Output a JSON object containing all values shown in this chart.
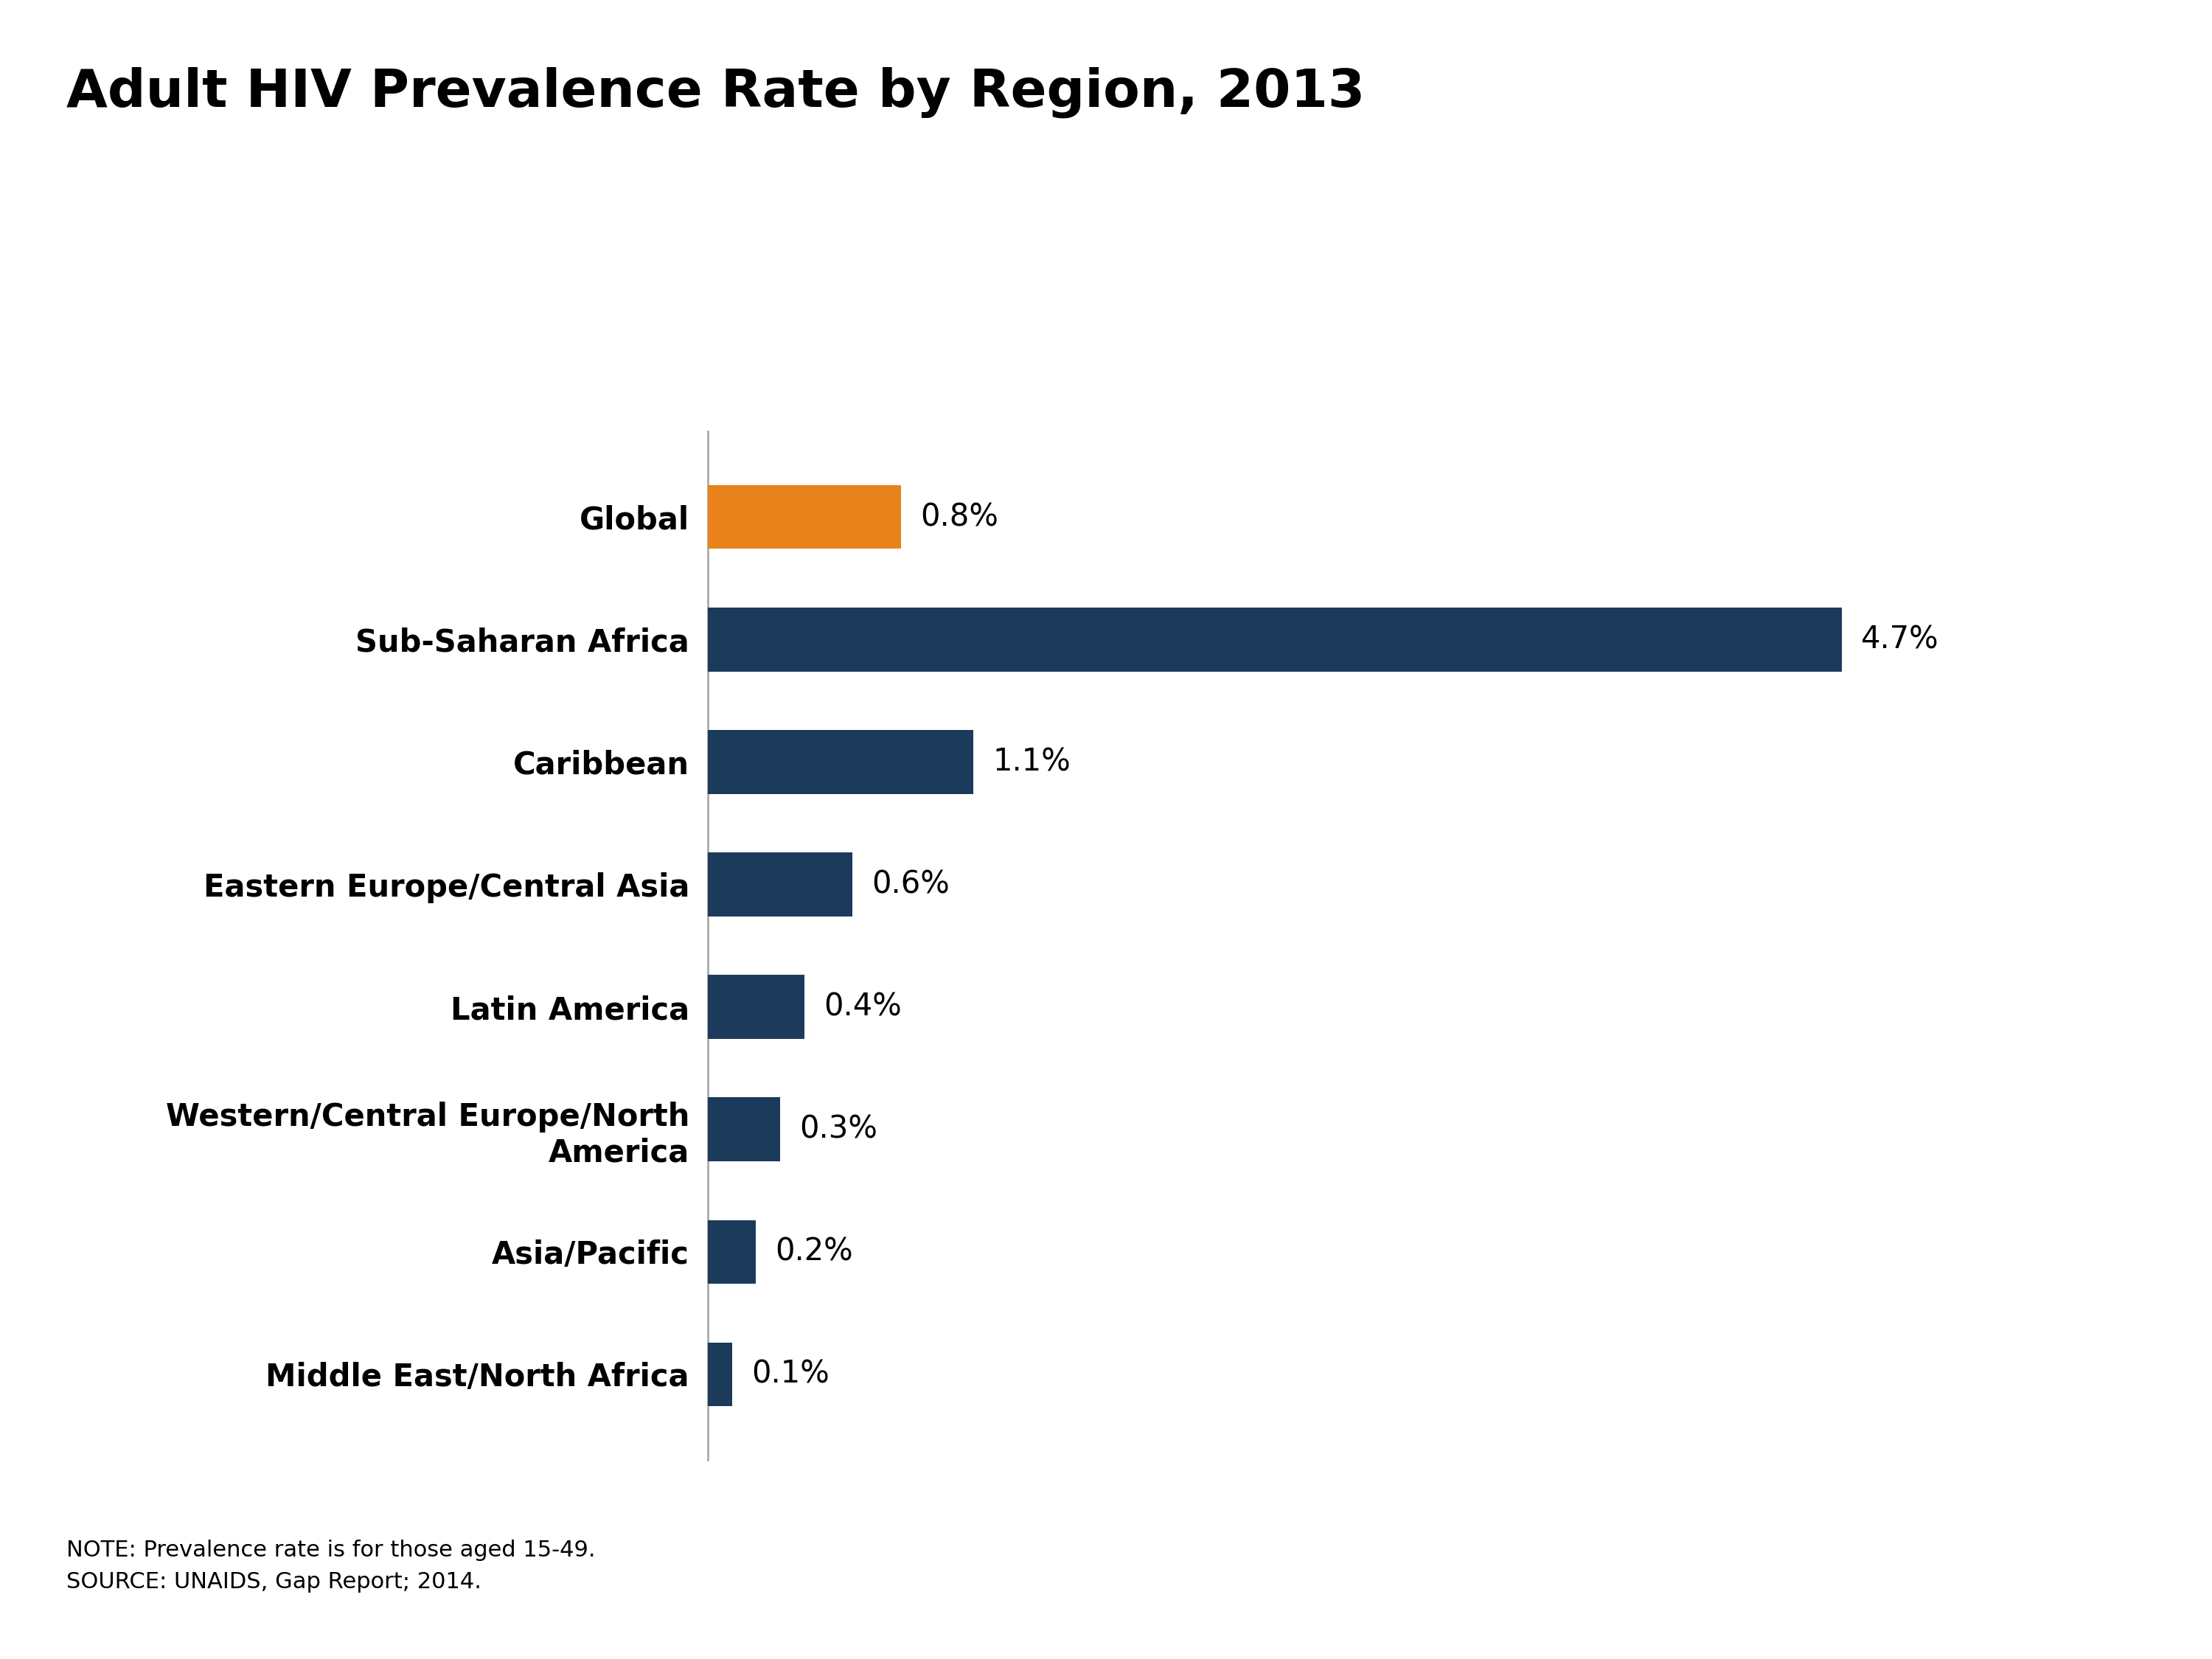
{
  "title": "Adult HIV Prevalence Rate by Region, 2013",
  "categories": [
    "Global",
    "Sub-Saharan Africa",
    "Caribbean",
    "Eastern Europe/Central Asia",
    "Latin America",
    "Western/Central Europe/North\nAmerica",
    "Asia/Pacific",
    "Middle East/North Africa"
  ],
  "values": [
    0.8,
    4.7,
    1.1,
    0.6,
    0.4,
    0.3,
    0.2,
    0.1
  ],
  "labels": [
    "0.8%",
    "4.7%",
    "1.1%",
    "0.6%",
    "0.4%",
    "0.3%",
    "0.2%",
    "0.1%"
  ],
  "bar_colors": [
    "#E8821A",
    "#1C3A5C",
    "#1C3A5C",
    "#1C3A5C",
    "#1C3A5C",
    "#1C3A5C",
    "#1C3A5C",
    "#1C3A5C"
  ],
  "background_color": "#FFFFFF",
  "title_fontsize": 52,
  "label_fontsize": 30,
  "value_fontsize": 30,
  "note_text": "NOTE: Prevalence rate is for those aged 15-49.\nSOURCE: UNAIDS, Gap Report; 2014.",
  "note_fontsize": 22,
  "xlim": [
    0,
    5.5
  ],
  "bar_height": 0.52,
  "spine_color": "#AAAAAA",
  "logo_bg": "#1C3A5C",
  "logo_text_color": "#FFFFFF"
}
